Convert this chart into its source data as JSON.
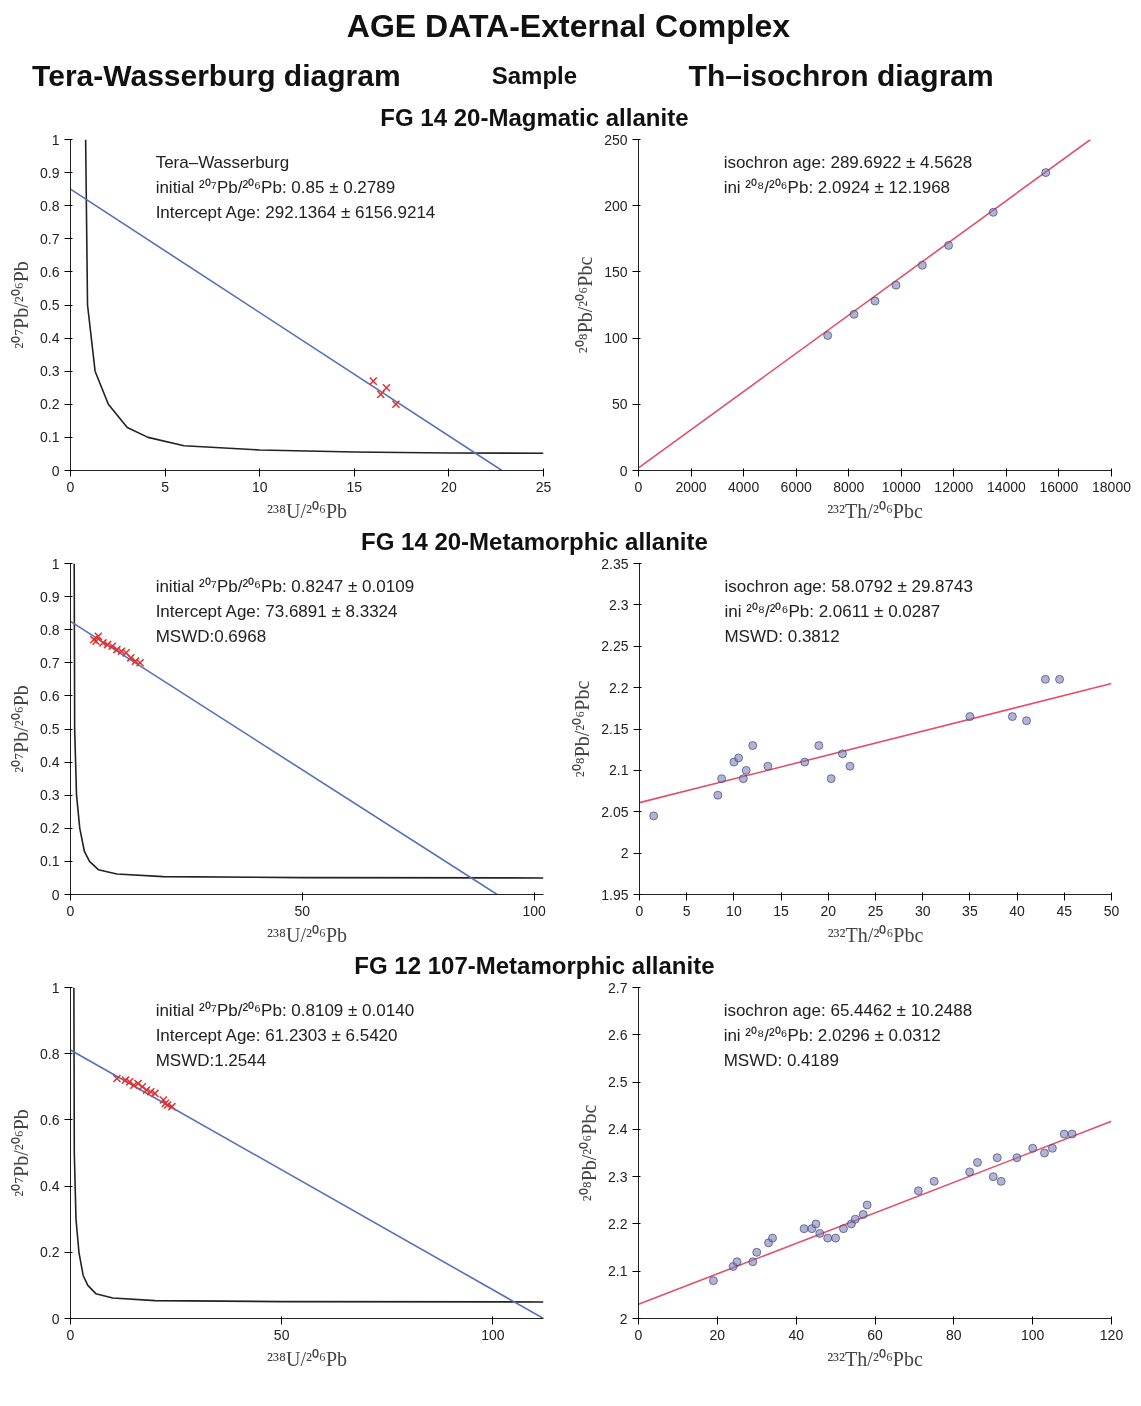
{
  "chart_data": [
    {
      "type": "other",
      "title": "AGE DATA-External Complex",
      "annotations": [
        "Tera-Wasserburg diagram",
        "Sample",
        "Th–isochron diagram"
      ]
    },
    {
      "type": "line",
      "title": "FG 14 20-Magmatic allanite",
      "xlabel": "²³⁸U/²⁰⁶Pb",
      "ylabel": "²⁰⁷Pb/²⁰⁶Pb",
      "xlim": [
        0,
        25
      ],
      "ylim": [
        0,
        1
      ],
      "xticks": [
        0,
        5,
        10,
        15,
        20,
        25
      ],
      "yticks": [
        0,
        0.1,
        0.2,
        0.3,
        0.4,
        0.5,
        0.6,
        0.7,
        0.8,
        0.9,
        1
      ],
      "annotations": [
        "Tera–Wasserburg",
        "initial ²⁰⁷Pb/²⁰⁶Pb: 0.85 ± 0.2789",
        "Intercept Age: 292.1364 ± 6156.9214"
      ],
      "series": [
        {
          "type": "line",
          "color": "#222222",
          "x": [
            0.8,
            0.9,
            1.3,
            2.0,
            3,
            4.1,
            6,
            10,
            15,
            20,
            25
          ],
          "values": [
            1,
            0.5,
            0.3,
            0.2,
            0.13,
            0.1,
            0.075,
            0.062,
            0.056,
            0.053,
            0.052
          ]
        },
        {
          "type": "line",
          "color": "#5470b8",
          "x": [
            0,
            22.8
          ],
          "values": [
            0.85,
            0
          ]
        },
        {
          "type": "scatter",
          "marker": "cross",
          "color": "#e03030",
          "x": [
            16.0,
            16.7,
            16.4,
            17.2
          ],
          "values": [
            0.27,
            0.25,
            0.23,
            0.2
          ]
        }
      ]
    },
    {
      "type": "line",
      "xlabel": "²³²Th/²⁰⁶Pbc",
      "ylabel": "²⁰⁸Pb/²⁰⁶Pbc",
      "xlim": [
        0,
        18000
      ],
      "ylim": [
        0,
        250
      ],
      "xticks": [
        0,
        2000,
        4000,
        6000,
        8000,
        10000,
        12000,
        14000,
        16000,
        18000
      ],
      "yticks": [
        0,
        50,
        100,
        150,
        200,
        250
      ],
      "annotations": [
        "isochron age: 289.6922 ± 4.5628",
        "ini ²⁰⁸/²⁰⁶Pb: 2.0924 ± 12.1968"
      ],
      "series": [
        {
          "type": "line",
          "color": "#e0506a",
          "x": [
            0,
            17200
          ],
          "values": [
            2,
            250
          ]
        },
        {
          "type": "scatter",
          "marker": "circle",
          "color": "#7b80bf",
          "x": [
            7200,
            8200,
            9000,
            9800,
            10800,
            11800,
            13500,
            15500
          ],
          "values": [
            102,
            118,
            128,
            140,
            155,
            170,
            195,
            225
          ]
        }
      ]
    },
    {
      "type": "line",
      "title": "FG 14 20-Metamorphic allanite",
      "xlabel": "²³⁸U/²⁰⁶Pb",
      "ylabel": "²⁰⁷Pb/²⁰⁶Pb",
      "xlim": [
        0,
        102
      ],
      "ylim": [
        0,
        1
      ],
      "xticks": [
        0,
        50,
        100
      ],
      "yticks": [
        0,
        0.1,
        0.2,
        0.3,
        0.4,
        0.5,
        0.6,
        0.7,
        0.8,
        0.9,
        1
      ],
      "annotations": [
        "initial ²⁰⁷Pb/²⁰⁶Pb: 0.8247 ± 0.0109",
        "Intercept Age: 73.6891 ± 8.3324",
        "MSWD:0.6968"
      ],
      "series": [
        {
          "type": "line",
          "color": "#222222",
          "x": [
            0.8,
            0.9,
            1.3,
            2.0,
            3,
            4.1,
            6,
            10,
            20,
            50,
            102
          ],
          "values": [
            1,
            0.5,
            0.3,
            0.2,
            0.13,
            0.1,
            0.075,
            0.062,
            0.054,
            0.051,
            0.05
          ]
        },
        {
          "type": "line",
          "color": "#5470b8",
          "x": [
            0,
            92
          ],
          "values": [
            0.825,
            0
          ]
        },
        {
          "type": "scatter",
          "marker": "cross",
          "color": "#e03030",
          "x": [
            5,
            5.5,
            6,
            7,
            8,
            9,
            10,
            11,
            12,
            13,
            14,
            15
          ],
          "values": [
            0.77,
            0.765,
            0.78,
            0.76,
            0.755,
            0.75,
            0.74,
            0.735,
            0.73,
            0.715,
            0.705,
            0.7
          ]
        }
      ]
    },
    {
      "type": "line",
      "xlabel": "²³²Th/²⁰⁶Pbc",
      "ylabel": "²⁰⁸Pb/²⁰⁶Pbc",
      "xlim": [
        0,
        50
      ],
      "ylim": [
        1.95,
        2.35
      ],
      "xticks": [
        0,
        5,
        10,
        15,
        20,
        25,
        30,
        35,
        40,
        45,
        50
      ],
      "yticks": [
        1.95,
        2,
        2.05,
        2.1,
        2.15,
        2.2,
        2.25,
        2.3,
        2.35
      ],
      "annotations": [
        "isochron age: 58.0792 ± 29.8743",
        "ini ²⁰⁸/²⁰⁶Pb: 2.0611 ± 0.0287",
        "MSWD: 0.3812"
      ],
      "series": [
        {
          "type": "line",
          "color": "#e0506a",
          "x": [
            0,
            50
          ],
          "values": [
            2.061,
            2.205
          ]
        },
        {
          "type": "scatter",
          "marker": "circle",
          "color": "#7b80bf",
          "x": [
            1.5,
            8.3,
            8.7,
            10,
            10.5,
            11,
            11.3,
            12,
            13.6,
            17.5,
            19,
            20.3,
            21.5,
            22.3,
            35,
            39.5,
            41,
            43,
            44.5
          ],
          "values": [
            2.045,
            2.07,
            2.09,
            2.11,
            2.115,
            2.09,
            2.1,
            2.13,
            2.105,
            2.11,
            2.13,
            2.09,
            2.12,
            2.105,
            2.165,
            2.165,
            2.16,
            2.21,
            2.21
          ]
        }
      ]
    },
    {
      "type": "line",
      "title": "FG 12 107-Metamorphic allanite",
      "xlabel": "²³⁸U/²⁰⁶Pb",
      "ylabel": "²⁰⁷Pb/²⁰⁶Pb",
      "xlim": [
        0,
        112
      ],
      "ylim": [
        0,
        1
      ],
      "xticks": [
        0,
        50,
        100
      ],
      "yticks": [
        0,
        0.2,
        0.4,
        0.6,
        0.8,
        1
      ],
      "annotations": [
        "initial ²⁰⁷Pb/²⁰⁶Pb: 0.8109 ± 0.0140",
        "Intercept Age: 61.2303 ± 6.5420",
        "MSWD:1.2544"
      ],
      "series": [
        {
          "type": "line",
          "color": "#222222",
          "x": [
            0.8,
            0.9,
            1.3,
            2.0,
            3,
            4.1,
            6,
            10,
            20,
            50,
            112
          ],
          "values": [
            1,
            0.5,
            0.3,
            0.2,
            0.13,
            0.1,
            0.075,
            0.062,
            0.054,
            0.051,
            0.05
          ]
        },
        {
          "type": "line",
          "color": "#5470b8",
          "x": [
            0,
            112
          ],
          "values": [
            0.811,
            0
          ]
        },
        {
          "type": "scatter",
          "marker": "cross",
          "color": "#e03030",
          "x": [
            11,
            13,
            14,
            15,
            16,
            17,
            18,
            19,
            20,
            22,
            22.5,
            23,
            24
          ],
          "values": [
            0.725,
            0.72,
            0.715,
            0.705,
            0.71,
            0.7,
            0.69,
            0.685,
            0.68,
            0.66,
            0.65,
            0.645,
            0.64
          ]
        }
      ]
    },
    {
      "type": "line",
      "xlabel": "²³²Th/²⁰⁶Pbc",
      "ylabel": "²⁰⁸Pb/²⁰⁶Pbc",
      "xlim": [
        0,
        120
      ],
      "ylim": [
        2,
        2.7
      ],
      "xticks": [
        0,
        20,
        40,
        60,
        80,
        100,
        120
      ],
      "yticks": [
        2,
        2.1,
        2.2,
        2.3,
        2.4,
        2.5,
        2.6,
        2.7
      ],
      "annotations": [
        "isochron age: 65.4462 ± 10.2488",
        "ini ²⁰⁸/²⁰⁶Pb: 2.0296 ± 0.0312",
        "MSWD: 0.4189"
      ],
      "series": [
        {
          "type": "line",
          "color": "#e0506a",
          "x": [
            0,
            120
          ],
          "values": [
            2.03,
            2.417
          ]
        },
        {
          "type": "scatter",
          "marker": "circle",
          "color": "#7b80bf",
          "x": [
            19,
            24,
            25,
            29,
            30,
            33,
            34,
            42,
            44,
            45,
            46,
            48,
            50,
            52,
            54,
            55,
            57,
            58,
            71,
            75,
            84,
            86,
            90,
            91,
            92,
            96,
            100,
            103,
            105,
            108,
            110
          ],
          "values": [
            2.08,
            2.11,
            2.12,
            2.12,
            2.14,
            2.16,
            2.17,
            2.19,
            2.19,
            2.2,
            2.18,
            2.17,
            2.17,
            2.19,
            2.2,
            2.21,
            2.22,
            2.24,
            2.27,
            2.29,
            2.31,
            2.33,
            2.3,
            2.34,
            2.29,
            2.34,
            2.36,
            2.35,
            2.36,
            2.39,
            2.39
          ]
        }
      ]
    }
  ]
}
